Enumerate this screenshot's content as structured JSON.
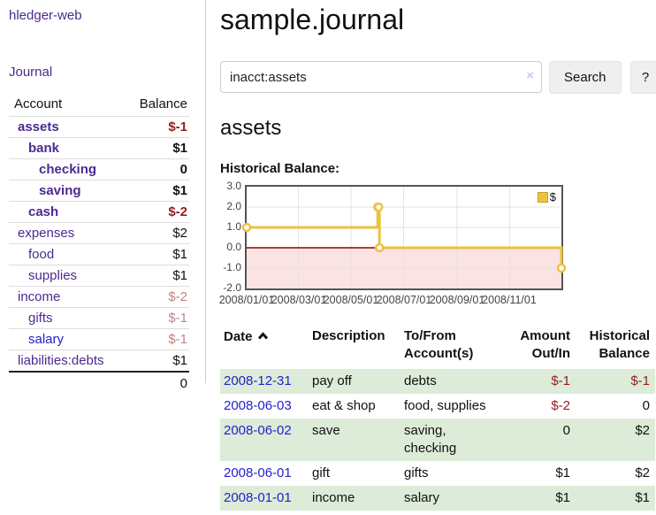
{
  "app": {
    "brand": "hledger-web"
  },
  "sidebar": {
    "nav_journal": "Journal",
    "table": {
      "headers": [
        "Account",
        "Balance"
      ],
      "accounts": [
        {
          "name": "assets",
          "indent": 0,
          "bold": true,
          "balance": "$-1",
          "balance_style": "neg"
        },
        {
          "name": "bank",
          "indent": 1,
          "bold": true,
          "balance": "$1",
          "balance_style": "pos"
        },
        {
          "name": "checking",
          "indent": 2,
          "bold": true,
          "balance": "0",
          "balance_style": "pos"
        },
        {
          "name": "saving",
          "indent": 2,
          "bold": true,
          "balance": "$1",
          "balance_style": "pos"
        },
        {
          "name": "cash",
          "indent": 1,
          "bold": true,
          "balance": "$-2",
          "balance_style": "neg"
        },
        {
          "name": "expenses",
          "indent": 0,
          "bold": false,
          "balance": "$2",
          "balance_style": "pos"
        },
        {
          "name": "food",
          "indent": 1,
          "bold": false,
          "balance": "$1",
          "balance_style": "pos"
        },
        {
          "name": "supplies",
          "indent": 1,
          "bold": false,
          "balance": "$1",
          "balance_style": "pos"
        },
        {
          "name": "income",
          "indent": 0,
          "bold": false,
          "balance": "$-2",
          "balance_style": "negfade"
        },
        {
          "name": "gifts",
          "indent": 1,
          "bold": false,
          "balance": "$-1",
          "balance_style": "negfade"
        },
        {
          "name": "salary",
          "indent": 1,
          "bold": false,
          "balance": "$-1",
          "balance_style": "negfade",
          "link_style": "blue"
        },
        {
          "name": "liabilities:debts",
          "indent": 0,
          "bold": false,
          "balance": "$1",
          "balance_style": "pos"
        }
      ],
      "total": "0"
    }
  },
  "header": {
    "title": "sample.journal"
  },
  "search": {
    "value": "inacct:assets",
    "clear_icon": "×",
    "button": "Search",
    "help_button": "?"
  },
  "account_page": {
    "heading": "assets",
    "chart_label": "Historical Balance:"
  },
  "chart_data": {
    "type": "line",
    "title": "Historical Balance",
    "step": true,
    "series": [
      {
        "name": "$",
        "color": "#edc240",
        "points": [
          [
            "2008-01-01",
            1
          ],
          [
            "2008-06-01",
            2
          ],
          [
            "2008-06-02",
            2
          ],
          [
            "2008-06-03",
            0
          ],
          [
            "2008-12-31",
            -1
          ]
        ]
      }
    ],
    "x_range": [
      "2008-01-01",
      "2008-12-31"
    ],
    "ylim": [
      -2,
      3
    ],
    "y_ticks": [
      3,
      2,
      1,
      0,
      -1,
      -2
    ],
    "y_tick_labels": [
      "3.0",
      "2.0",
      "1.0",
      "0.0",
      "-1.0",
      "-2.0"
    ],
    "x_tick_dates": [
      "2008-01-01",
      "2008-03-01",
      "2008-05-01",
      "2008-07-01",
      "2008-09-01",
      "2008-11-01"
    ],
    "x_tick_labels": [
      "2008/01/01",
      "2008/03/01",
      "2008/05/01",
      "2008/07/01",
      "2008/09/01",
      "2008/11/01"
    ],
    "legend": [
      {
        "label": "$",
        "color": "#edc240"
      }
    ],
    "legend_position": "top-right",
    "negative_region_color": "#fbe3e3",
    "zero_line_color": "#8b0000",
    "grid": true
  },
  "register": {
    "headers": {
      "date": "Date",
      "description": "Description",
      "account": "To/From Account(s)",
      "amount": "Amount Out/In",
      "balance": "Historical Balance"
    },
    "rows": [
      {
        "date": "2008-12-31",
        "description": "pay off",
        "account": "debts",
        "amount": "$-1",
        "amount_style": "neg",
        "balance": "$-1",
        "balance_style": "neg",
        "stripe": true
      },
      {
        "date": "2008-06-03",
        "description": "eat & shop",
        "account": "food, supplies",
        "amount": "$-2",
        "amount_style": "neg",
        "balance": "0",
        "balance_style": "pos",
        "stripe": false
      },
      {
        "date": "2008-06-02",
        "description": "save",
        "account": "saving, checking",
        "amount": "0",
        "amount_style": "pos",
        "balance": "$2",
        "balance_style": "pos",
        "stripe": true
      },
      {
        "date": "2008-06-01",
        "description": "gift",
        "account": "gifts",
        "amount": "$1",
        "amount_style": "pos",
        "balance": "$2",
        "balance_style": "pos",
        "stripe": false
      },
      {
        "date": "2008-01-01",
        "description": "income",
        "account": "salary",
        "amount": "$1",
        "amount_style": "pos",
        "balance": "$1",
        "balance_style": "pos",
        "stripe": true
      }
    ]
  },
  "colors": {
    "purple": "#4b2a8f",
    "linkblue": "#2222cc",
    "neg": "#941f1f",
    "negfade": "#c08484",
    "stripe": "#dcecd8",
    "gold": "#edc240",
    "pink": "#fbe3e3",
    "zero": "#8b0000",
    "chartborder": "#545454",
    "grid": "#e3e3e3"
  }
}
